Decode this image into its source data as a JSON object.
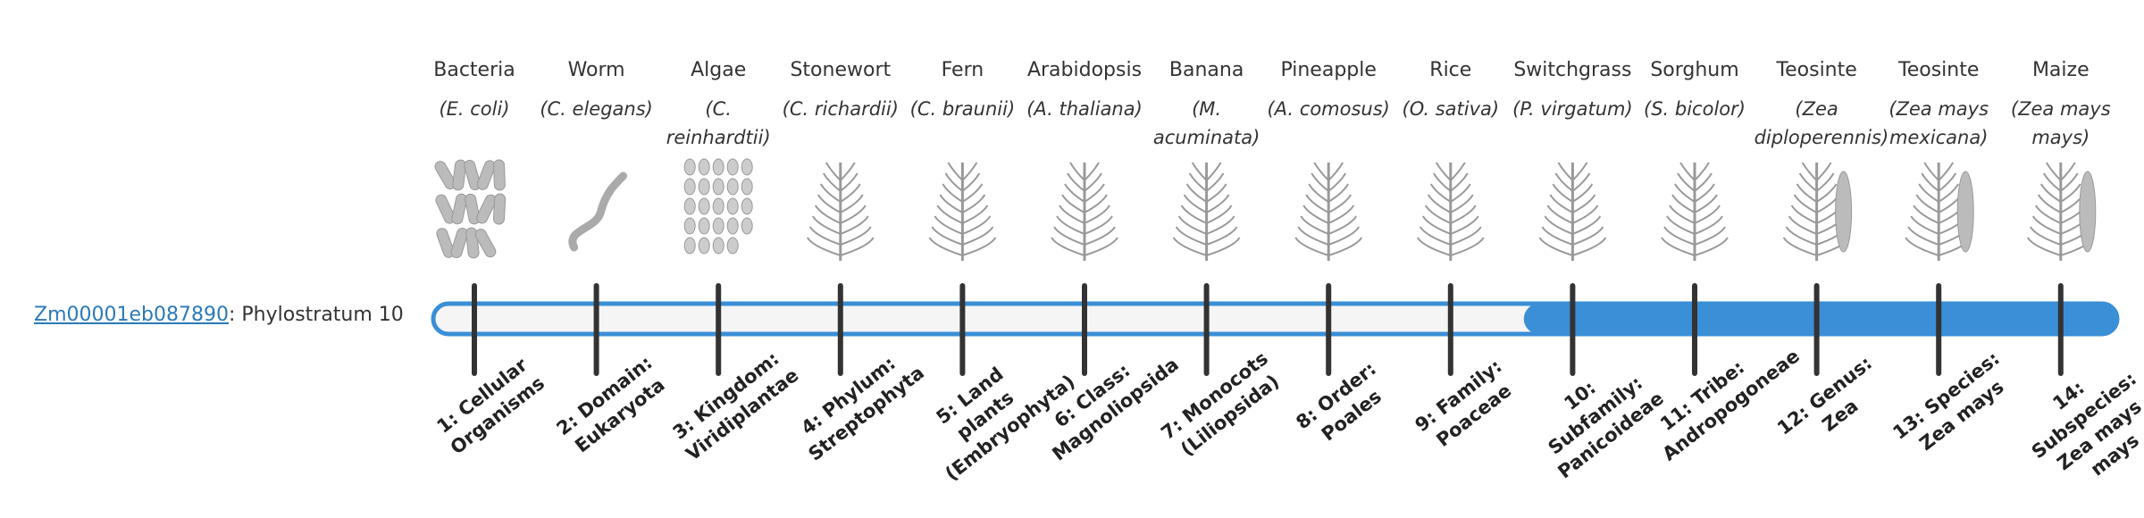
{
  "gene": {
    "id": "Zm00001eb087890",
    "label": ": Phylostratum 10"
  },
  "strata": [
    {
      "name": "Bacteria",
      "species": "(E. coli)",
      "rank": "1: Cellular Organisms",
      "active": false
    },
    {
      "name": "Worm",
      "species": "(C. elegans)",
      "rank": "2: Domain: Eukaryota",
      "active": false
    },
    {
      "name": "Algae",
      "species": "(C. reinhardtii)",
      "rank": "3: Kingdom: Viridiplantae",
      "active": false
    },
    {
      "name": "Stonewort",
      "species": "(C. richardii)",
      "rank": "4: Phylum: Streptophyta",
      "active": false
    },
    {
      "name": "Fern",
      "species": "(C. braunii)",
      "rank": "5: Land plants (Embryophyta)",
      "active": false
    },
    {
      "name": "Arabidopsis",
      "species": "(A. thaliana)",
      "rank": "6: Class: Magnoliopsida",
      "active": false
    },
    {
      "name": "Banana",
      "species": "(M. acuminata)",
      "rank": "7: Monocots (Liliopsida)",
      "active": false
    },
    {
      "name": "Pineapple",
      "species": "(A. comosus)",
      "rank": "8: Order: Poales",
      "active": false
    },
    {
      "name": "Rice",
      "species": "(O. sativa)",
      "rank": "9: Family: Poaceae",
      "active": false
    },
    {
      "name": "Switchgrass",
      "species": "(P. virgatum)",
      "rank": "10: Subfamily: Panicoideae",
      "active": true
    },
    {
      "name": "Sorghum",
      "species": "(S. bicolor)",
      "rank": "11: Tribe: Andropogoneae",
      "active": true
    },
    {
      "name": "Teosinte",
      "species": "(Zea diploperennis)",
      "rank": "12: Genus: Zea",
      "active": true
    },
    {
      "name": "Teosinte",
      "species": "(Zea mays mexicana)",
      "rank": "13: Species: Zea mays",
      "active": true
    },
    {
      "name": "Maize",
      "species": "(Zea mays mays)",
      "rank": "14: Subspecies: Zea mays mays",
      "active": true
    }
  ]
}
